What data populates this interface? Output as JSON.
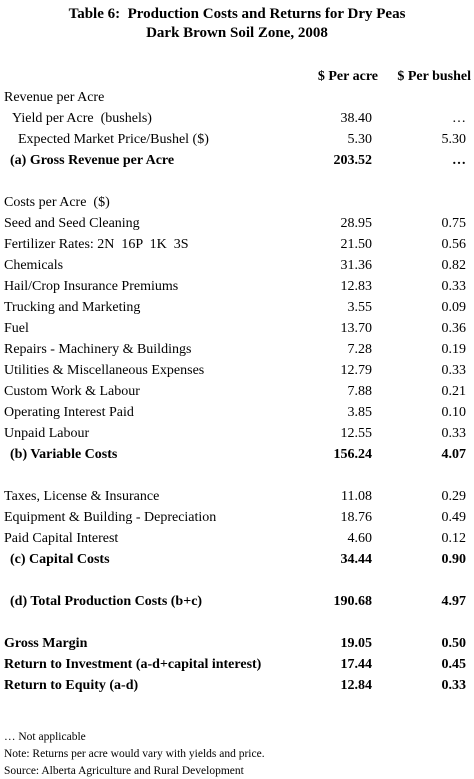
{
  "header": {
    "title": "Table 6:  Production Costs and Returns for Dry Peas",
    "subtitle": "Dark Brown Soil Zone, 2008"
  },
  "table": {
    "columns": [
      "$ Per acre",
      "$ Per bushel"
    ],
    "rows": [
      [
        "Revenue per Acre",
        null,
        null
      ],
      [
        "Yield per Acre  (bushels)",
        "38.40",
        "…"
      ],
      [
        "Expected Market Price/Bushel ($)",
        "5.30",
        "5.30"
      ],
      [
        "(a) Gross Revenue per Acre",
        "203.52",
        "…"
      ],
      [
        "Costs per Acre  ($)",
        null,
        null
      ],
      [
        "Seed and Seed Cleaning",
        "28.95",
        "0.75"
      ],
      [
        "Fertilizer Rates: 2N  16P  1K  3S",
        "21.50",
        "0.56"
      ],
      [
        "Chemicals",
        "31.36",
        "0.82"
      ],
      [
        "Hail/Crop Insurance Premiums",
        "12.83",
        "0.33"
      ],
      [
        "Trucking and Marketing",
        "3.55",
        "0.09"
      ],
      [
        "Fuel",
        "13.70",
        "0.36"
      ],
      [
        "Repairs - Machinery & Buildings",
        "7.28",
        "0.19"
      ],
      [
        "Utilities & Miscellaneous Expenses",
        "12.79",
        "0.33"
      ],
      [
        "Custom Work & Labour",
        "7.88",
        "0.21"
      ],
      [
        "Operating Interest Paid",
        "3.85",
        "0.10"
      ],
      [
        "Unpaid Labour",
        "12.55",
        "0.33"
      ],
      [
        "(b) Variable Costs",
        "156.24",
        "4.07"
      ],
      [
        "Taxes, License & Insurance",
        "11.08",
        "0.29"
      ],
      [
        "Equipment & Building - Depreciation",
        "18.76",
        "0.49"
      ],
      [
        "Paid Capital Interest",
        "4.60",
        "0.12"
      ],
      [
        "(c) Capital Costs",
        "34.44",
        "0.90"
      ],
      [
        "(d) Total Production Costs (b+c)",
        "190.68",
        "4.97"
      ],
      [
        "Gross Margin",
        "19.05",
        "0.50"
      ],
      [
        "Return to Investment (a-d+capital interest)",
        "17.44",
        "0.45"
      ],
      [
        "Return to Equity (a-d)",
        "12.84",
        "0.33"
      ]
    ]
  },
  "notes": [
    "… Not applicable",
    "Note: Returns per acre would vary with yields and price.",
    "Source: Alberta Agriculture and Rural Development"
  ]
}
